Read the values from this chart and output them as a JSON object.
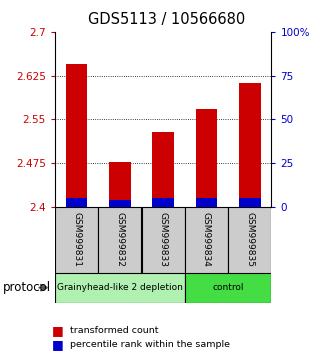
{
  "title": "GDS5113 / 10566680",
  "samples": [
    "GSM999831",
    "GSM999832",
    "GSM999833",
    "GSM999834",
    "GSM999835"
  ],
  "red_values": [
    2.645,
    2.478,
    2.528,
    2.568,
    2.612
  ],
  "blue_values": [
    2.415,
    2.412,
    2.415,
    2.415,
    2.415
  ],
  "red_base": 2.4,
  "blue_base": 2.4,
  "ylim": [
    2.4,
    2.7
  ],
  "yticks": [
    2.4,
    2.475,
    2.55,
    2.625,
    2.7
  ],
  "ytick_labels": [
    "2.4",
    "2.475",
    "2.55",
    "2.625",
    "2.7"
  ],
  "y2ticks": [
    0,
    25,
    50,
    75,
    100
  ],
  "y2tick_labels": [
    "0",
    "25",
    "50",
    "75",
    "100%"
  ],
  "groups": [
    {
      "label": "Grainyhead-like 2 depletion",
      "color": "#b0f0b0",
      "start": 0,
      "end": 2
    },
    {
      "label": "control",
      "color": "#44dd44",
      "start": 3,
      "end": 4
    }
  ],
  "protocol_label": "protocol",
  "legend_red": "transformed count",
  "legend_blue": "percentile rank within the sample",
  "left_tick_color": "#cc0000",
  "right_tick_color": "#0000cc",
  "bar_red_color": "#cc0000",
  "bar_blue_color": "#0000cc",
  "xlabel_area_color": "#cccccc",
  "bar_width": 0.5
}
